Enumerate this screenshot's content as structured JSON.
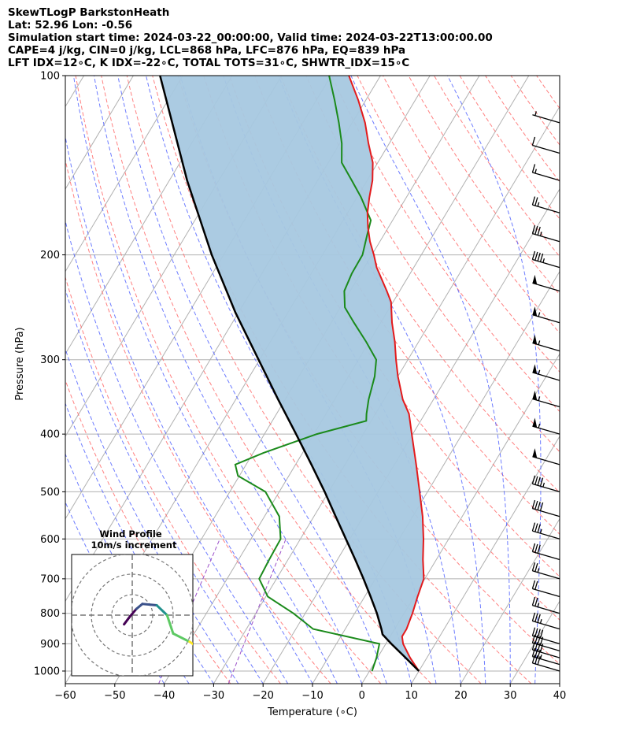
{
  "header": {
    "line1": "SkewTLogP BarkstonHeath",
    "line2": "Lat: 52.96   Lon: -0.56",
    "line3": "Simulation start time: 2024-03-22_00:00:00, Valid time: 2024-03-22T13:00:00.00",
    "line4": "CAPE=4 j/kg, CIN=0 j/kg, LCL=868 hPa, LFC=876 hPa, EQ=839 hPa",
    "line5": "LFT IDX=12∘C, K IDX=-22∘C, TOTAL TOTS=31∘C, SHWTR_IDX=15∘C"
  },
  "colors": {
    "temperature": "#e31a1c",
    "dewpoint": "#1b8a1b",
    "parcel": "#000000",
    "cape_fill": "#a6c8e0",
    "dry_adiabat": "#ff6b6b",
    "moist_adiabat": "#4a5cff",
    "isotherm": "#b0b0b0",
    "mixing_ratio": "#9b4fc9"
  },
  "chart_data": {
    "type": "line",
    "title": "SkewTLogP BarkstonHeath",
    "xlabel": "Temperature (∘C)",
    "ylabel": "Pressure (hPa)",
    "xlim": [
      -60,
      40
    ],
    "ylim": [
      1050,
      100
    ],
    "xticks": [
      "−60",
      "−50",
      "−40",
      "−30",
      "−20",
      "−10",
      "0",
      "10",
      "20",
      "30",
      "40"
    ],
    "yticks": [
      "100",
      "200",
      "300",
      "400",
      "500",
      "600",
      "700",
      "800",
      "900",
      "1000"
    ],
    "ytick_values": [
      100,
      200,
      300,
      400,
      500,
      600,
      700,
      800,
      900,
      1000
    ],
    "series": [
      {
        "name": "Temperature",
        "points": [
          [
            1000,
            10.0
          ],
          [
            950,
            6.6
          ],
          [
            900,
            3.5
          ],
          [
            875,
            2.4
          ],
          [
            850,
            2.4
          ],
          [
            800,
            1.7
          ],
          [
            750,
            0.7
          ],
          [
            700,
            -0.2
          ],
          [
            650,
            -2.7
          ],
          [
            600,
            -5.1
          ],
          [
            550,
            -8.0
          ],
          [
            500,
            -11.6
          ],
          [
            450,
            -15.6
          ],
          [
            400,
            -20.2
          ],
          [
            370,
            -23.2
          ],
          [
            350,
            -26.2
          ],
          [
            320,
            -30.0
          ],
          [
            300,
            -32.4
          ],
          [
            280,
            -34.8
          ],
          [
            260,
            -37.7
          ],
          [
            240,
            -40.4
          ],
          [
            230,
            -42.6
          ],
          [
            220,
            -45.0
          ],
          [
            210,
            -47.5
          ],
          [
            200,
            -49.6
          ],
          [
            190,
            -52.0
          ],
          [
            180,
            -54.1
          ],
          [
            170,
            -56.0
          ],
          [
            160,
            -57.5
          ],
          [
            150,
            -58.9
          ],
          [
            140,
            -61.0
          ],
          [
            130,
            -64.2
          ],
          [
            120,
            -67.4
          ],
          [
            110,
            -71.5
          ],
          [
            100,
            -76.4
          ]
        ]
      },
      {
        "name": "Dewpoint",
        "points": [
          [
            1000,
            0.5
          ],
          [
            950,
            -0.2
          ],
          [
            900,
            -1.3
          ],
          [
            850,
            -16.5
          ],
          [
            800,
            -22.4
          ],
          [
            750,
            -29.6
          ],
          [
            700,
            -33.5
          ],
          [
            650,
            -33.8
          ],
          [
            600,
            -34.0
          ],
          [
            550,
            -37.0
          ],
          [
            500,
            -42.8
          ],
          [
            470,
            -50.3
          ],
          [
            450,
            -52.2
          ],
          [
            430,
            -47.9
          ],
          [
            400,
            -39.4
          ],
          [
            380,
            -31.0
          ],
          [
            370,
            -31.8
          ],
          [
            350,
            -33.1
          ],
          [
            320,
            -34.7
          ],
          [
            300,
            -36.4
          ],
          [
            280,
            -40.6
          ],
          [
            260,
            -45.4
          ],
          [
            245,
            -49.1
          ],
          [
            230,
            -51.2
          ],
          [
            215,
            -51.8
          ],
          [
            200,
            -51.9
          ],
          [
            185,
            -53.4
          ],
          [
            175,
            -54.4
          ],
          [
            160,
            -59.2
          ],
          [
            150,
            -63.1
          ],
          [
            140,
            -67.3
          ],
          [
            130,
            -69.6
          ],
          [
            120,
            -72.7
          ],
          [
            110,
            -76.3
          ],
          [
            100,
            -80.4
          ]
        ]
      },
      {
        "name": "Parcel",
        "points": [
          [
            1000,
            10.0
          ],
          [
            950,
            5.7
          ],
          [
            900,
            1.1
          ],
          [
            868,
            -1.8
          ],
          [
            850,
            -2.7
          ],
          [
            800,
            -5.5
          ],
          [
            750,
            -8.8
          ],
          [
            700,
            -12.4
          ],
          [
            650,
            -16.4
          ],
          [
            600,
            -20.8
          ],
          [
            550,
            -25.6
          ],
          [
            500,
            -30.8
          ],
          [
            450,
            -36.8
          ],
          [
            400,
            -43.6
          ],
          [
            350,
            -51.4
          ],
          [
            300,
            -60.2
          ],
          [
            250,
            -70.6
          ],
          [
            200,
            -82.4
          ],
          [
            150,
            -96.4
          ],
          [
            100,
            -114.6
          ]
        ]
      }
    ],
    "wind_barbs": [
      {
        "p": 1000,
        "speed_kt": 30
      },
      {
        "p": 975,
        "speed_kt": 35
      },
      {
        "p": 950,
        "speed_kt": 40
      },
      {
        "p": 925,
        "speed_kt": 40
      },
      {
        "p": 900,
        "speed_kt": 40
      },
      {
        "p": 850,
        "speed_kt": 35
      },
      {
        "p": 800,
        "speed_kt": 25
      },
      {
        "p": 750,
        "speed_kt": 20
      },
      {
        "p": 700,
        "speed_kt": 25
      },
      {
        "p": 650,
        "speed_kt": 30
      },
      {
        "p": 600,
        "speed_kt": 35
      },
      {
        "p": 550,
        "speed_kt": 40
      },
      {
        "p": 500,
        "speed_kt": 45
      },
      {
        "p": 450,
        "speed_kt": 50
      },
      {
        "p": 400,
        "speed_kt": 55
      },
      {
        "p": 360,
        "speed_kt": 55
      },
      {
        "p": 325,
        "speed_kt": 55
      },
      {
        "p": 290,
        "speed_kt": 55
      },
      {
        "p": 260,
        "speed_kt": 55
      },
      {
        "p": 230,
        "speed_kt": 50
      },
      {
        "p": 210,
        "speed_kt": 45
      },
      {
        "p": 190,
        "speed_kt": 35
      },
      {
        "p": 170,
        "speed_kt": 25
      },
      {
        "p": 150,
        "speed_kt": 15
      },
      {
        "p": 135,
        "speed_kt": 10
      },
      {
        "p": 120,
        "speed_kt": 5
      }
    ],
    "inset": {
      "title": "Wind Profile",
      "subtitle": "10m/s increment",
      "rings_ms": [
        10,
        20,
        30
      ],
      "hodograph": [
        [
          -4,
          4.5
        ],
        [
          -1,
          0.5
        ],
        [
          2,
          -3
        ],
        [
          5,
          -5.5
        ],
        [
          12,
          -4.8
        ],
        [
          17,
          0
        ],
        [
          20,
          9
        ],
        [
          28,
          13
        ],
        [
          34,
          17
        ]
      ]
    }
  }
}
